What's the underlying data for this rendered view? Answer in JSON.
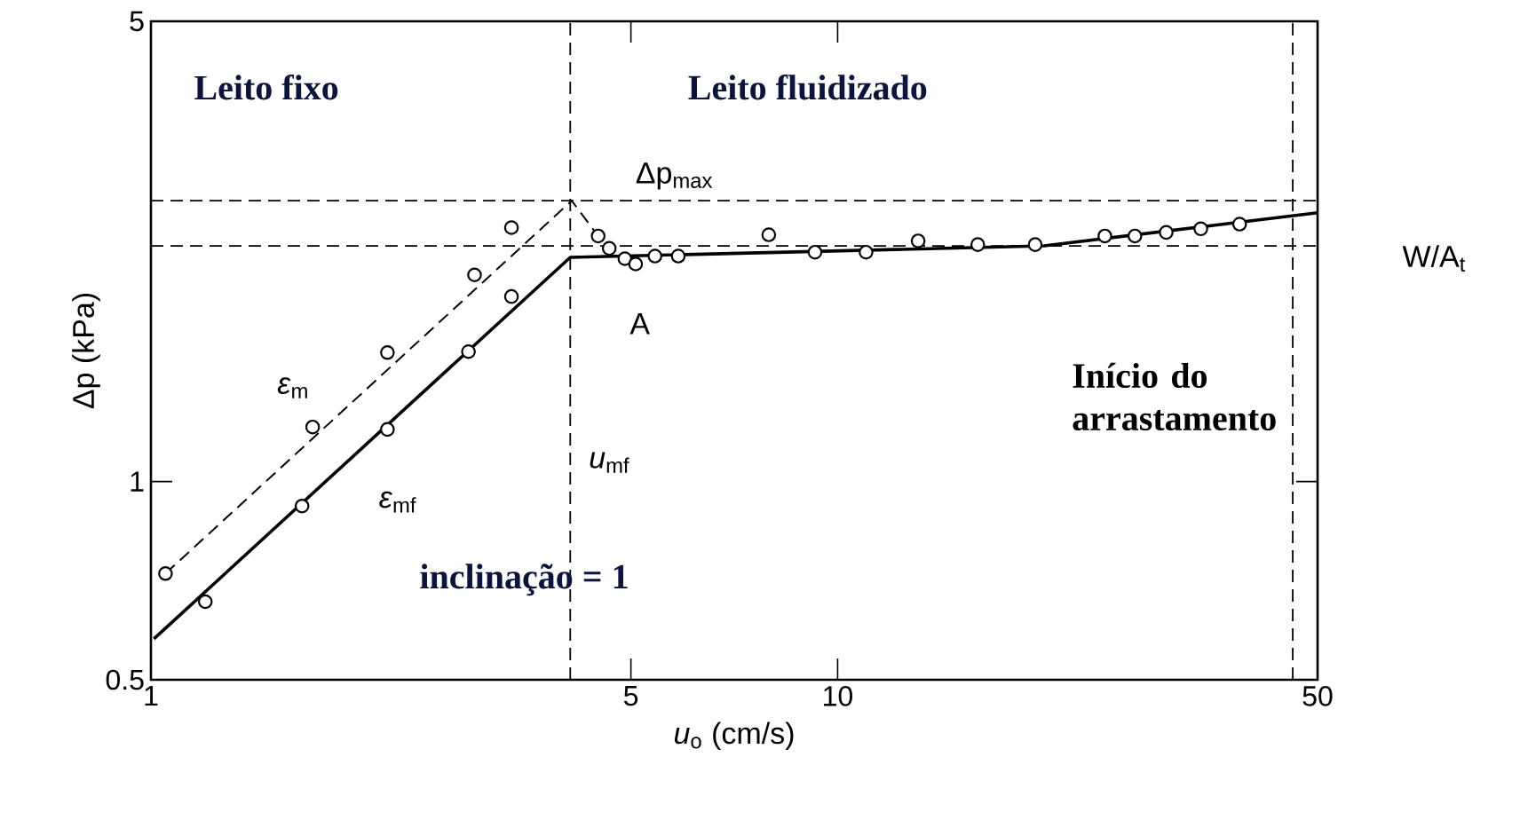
{
  "chart_data": {
    "type": "line",
    "xlabel": "*u*$_{o}$ (cm/s)",
    "ylabel": "Δp (kPa)",
    "log": "xy",
    "xlim": [
      1,
      50
    ],
    "ylim": [
      0.5,
      5
    ],
    "xticks": [
      1,
      5,
      10,
      50
    ],
    "yticks": [
      0.5,
      1,
      5
    ],
    "series": [
      {
        "name": "*ε*$_{m}$",
        "line_style": "dashed",
        "marker": "none",
        "color": "#000000",
        "x": [
          1.05,
          4.1,
          4.48
        ],
        "values": [
          0.725,
          2.67,
          2.36
        ]
      },
      {
        "name": "*ε*$_{mf}$",
        "line_style": "solid",
        "marker": "none",
        "color": "#000000",
        "x": [
          1.01,
          4.08,
          20,
          50
        ],
        "values": [
          0.577,
          2.19,
          2.28,
          2.56
        ]
      },
      {
        "type": "scatter",
        "marker": "circle",
        "color": "#000000",
        "x": [
          1.05,
          1.72,
          2.21,
          2.96,
          3.35,
          1.2,
          1.66,
          2.21,
          2.9,
          3.35,
          4.48,
          4.65,
          4.9,
          5.08,
          5.42,
          5.86,
          7.94,
          9.27,
          11.0,
          13.1,
          16.0,
          19.4,
          24.5,
          27.1,
          30.1,
          33.8,
          38.5
        ],
        "values": [
          0.725,
          1.21,
          1.57,
          2.06,
          2.43,
          0.657,
          0.918,
          1.2,
          1.575,
          1.91,
          2.36,
          2.26,
          2.18,
          2.14,
          2.2,
          2.2,
          2.37,
          2.23,
          2.23,
          2.32,
          2.29,
          2.29,
          2.36,
          2.36,
          2.39,
          2.42,
          2.46
        ]
      }
    ],
    "ref_lines": [
      {
        "axis": "y",
        "value": 2.67,
        "label": "Δp$_{max}$",
        "line_style": "dashed"
      },
      {
        "axis": "x",
        "value": 4.08,
        "label": "*u*$_{mf}$",
        "line_style": "dashed"
      },
      {
        "axis": "y",
        "value": 2.28,
        "label": "W/A$_{t}$",
        "line_style": "dashed"
      },
      {
        "axis": "x",
        "value": 46,
        "label": "Início do arrastamento",
        "line_style": "dashed"
      }
    ],
    "annotations": [
      "Leito fixo",
      "Leito fluidizado",
      "inclinação = 1",
      {
        "text": "A",
        "x": 4.08,
        "y": 2.19
      }
    ]
  }
}
